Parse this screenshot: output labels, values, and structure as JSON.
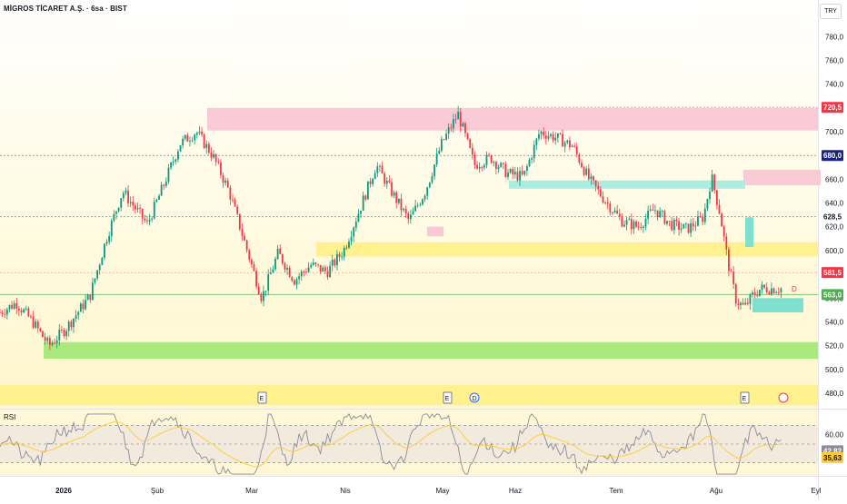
{
  "header": {
    "title": "MİGROS TİCARET A.Ş. · 6sa · BIST",
    "currency": "TRY"
  },
  "chart_data": [
    {
      "type": "candlestick",
      "title": "MİGROS TİCARET A.Ş. · 6sa · BIST",
      "yaxis": {
        "ticks": [
          780,
          760,
          740,
          720,
          700,
          680,
          660,
          640,
          620,
          600,
          580,
          560,
          540,
          520,
          500,
          480
        ],
        "tick_labels": [
          "780,0",
          "760,0",
          "740,0",
          "720,0",
          "700,0",
          "680,0",
          "660,0",
          "640,0",
          "620,0",
          "600,0",
          "580,0",
          "560,0",
          "540,0",
          "520,0",
          "500,0",
          "480,0"
        ],
        "range": [
          467,
          794
        ]
      },
      "xaxis": {
        "labels": [
          "2026",
          "Şub",
          "Mar",
          "Nis",
          "May",
          "Haz",
          "Tem",
          "Ağu",
          "Eyl"
        ]
      },
      "price_tags": [
        {
          "value": 720.5,
          "label": "720,5",
          "color": "#f23645"
        },
        {
          "value": 680.0,
          "label": "680,0",
          "color": "#1a237e"
        },
        {
          "value": 628.5,
          "label": "628,5",
          "color": "#131722"
        },
        {
          "value": 581.5,
          "label": "581,5",
          "color": "#f23645"
        },
        {
          "value": 563.0,
          "label": "563,0",
          "color": "#4caf50"
        }
      ],
      "zones": [
        {
          "name": "resistance-zone-top",
          "y1": 701,
          "y2": 720,
          "color": "#f8c8d4"
        },
        {
          "name": "resistance-zone-right",
          "y1": 655,
          "y2": 668,
          "color": "#f8c8d4"
        },
        {
          "name": "demand-zone-mid",
          "y1": 652,
          "y2": 659,
          "color": "#a6ecdf"
        },
        {
          "name": "support-zone-yellow",
          "y1": 595,
          "y2": 607,
          "color": "#fff08a"
        },
        {
          "name": "support-zone-green",
          "y1": 509,
          "y2": 523,
          "color": "#a5e879"
        },
        {
          "name": "support-zone-bottom",
          "y1": 470,
          "y2": 487,
          "color": "#fff08a"
        }
      ],
      "series": [
        {
          "name": "price",
          "type": "candlestick",
          "points": [
            [
              0.0,
              548
            ],
            [
              0.02,
              556
            ],
            [
              0.04,
              540
            ],
            [
              0.06,
              520
            ],
            [
              0.08,
              534
            ],
            [
              0.11,
              562
            ],
            [
              0.13,
              610
            ],
            [
              0.15,
              650
            ],
            [
              0.18,
              622
            ],
            [
              0.2,
              655
            ],
            [
              0.22,
              690
            ],
            [
              0.24,
              700
            ],
            [
              0.26,
              680
            ],
            [
              0.28,
              650
            ],
            [
              0.3,
              605
            ],
            [
              0.32,
              560
            ],
            [
              0.34,
              598
            ],
            [
              0.36,
              575
            ],
            [
              0.38,
              588
            ],
            [
              0.4,
              582
            ],
            [
              0.42,
              600
            ],
            [
              0.44,
              635
            ],
            [
              0.46,
              672
            ],
            [
              0.48,
              648
            ],
            [
              0.5,
              625
            ],
            [
              0.52,
              650
            ],
            [
              0.54,
              690
            ],
            [
              0.56,
              715
            ],
            [
              0.58,
              672
            ],
            [
              0.6,
              678
            ],
            [
              0.62,
              665
            ],
            [
              0.64,
              662
            ],
            [
              0.66,
              700
            ],
            [
              0.68,
              695
            ],
            [
              0.7,
              688
            ],
            [
              0.72,
              660
            ],
            [
              0.74,
              642
            ],
            [
              0.76,
              625
            ],
            [
              0.78,
              620
            ],
            [
              0.8,
              635
            ],
            [
              0.82,
              622
            ],
            [
              0.84,
              618
            ],
            [
              0.86,
              628
            ],
            [
              0.87,
              662
            ],
            [
              0.88,
              632
            ],
            [
              0.89,
              590
            ],
            [
              0.9,
              558
            ],
            [
              0.91,
              552
            ],
            [
              0.92,
              562
            ],
            [
              0.93,
              568
            ]
          ]
        }
      ],
      "annotations": {
        "events": [
          "E",
          "E",
          "D",
          "E"
        ],
        "dividend_marker": "D"
      }
    },
    {
      "type": "line",
      "title": "RSI",
      "values_shown": [
        {
          "label": "42,82",
          "value": 42.82
        },
        {
          "label": "35,63",
          "value": 35.63
        }
      ],
      "yaxis": {
        "ticks": [
          60
        ],
        "tick_labels": [
          "60,00"
        ]
      },
      "series": [
        {
          "name": "RSI",
          "color": "#8b8b99"
        },
        {
          "name": "RSI-MA",
          "color": "#ffcc33"
        }
      ]
    }
  ]
}
